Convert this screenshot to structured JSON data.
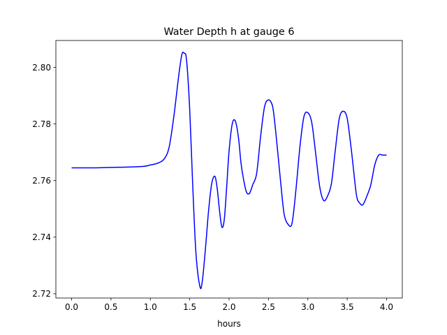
{
  "chart_data": {
    "type": "line",
    "title": "Water Depth h at gauge 6",
    "xlabel": "hours",
    "ylabel": "",
    "xlim": [
      -0.2,
      4.2
    ],
    "ylim": [
      2.7185,
      2.8095
    ],
    "xticks": [
      0.0,
      0.5,
      1.0,
      1.5,
      2.0,
      2.5,
      3.0,
      3.5,
      4.0
    ],
    "xtick_labels": [
      "0.0",
      "0.5",
      "1.0",
      "1.5",
      "2.0",
      "2.5",
      "3.0",
      "3.5",
      "4.0"
    ],
    "yticks": [
      2.72,
      2.74,
      2.76,
      2.78,
      2.8
    ],
    "ytick_labels": [
      "2.72",
      "2.74",
      "2.76",
      "2.78",
      "2.80"
    ],
    "grid": false,
    "legend": "none",
    "series": [
      {
        "color": "#0000ff",
        "x": [
          0.0,
          0.3,
          0.6,
          0.9,
          1.0,
          1.1,
          1.18,
          1.24,
          1.3,
          1.36,
          1.4,
          1.43,
          1.46,
          1.5,
          1.54,
          1.58,
          1.63,
          1.66,
          1.7,
          1.74,
          1.78,
          1.82,
          1.85,
          1.88,
          1.91,
          1.94,
          1.97,
          2.0,
          2.04,
          2.08,
          2.12,
          2.15,
          2.18,
          2.22,
          2.26,
          2.3,
          2.35,
          2.4,
          2.45,
          2.5,
          2.55,
          2.58,
          2.62,
          2.66,
          2.7,
          2.75,
          2.8,
          2.85,
          2.9,
          2.95,
          3.0,
          3.05,
          3.1,
          3.15,
          3.2,
          3.25,
          3.3,
          3.35,
          3.4,
          3.45,
          3.5,
          3.55,
          3.58,
          3.62,
          3.66,
          3.7,
          3.75,
          3.8,
          3.85,
          3.9,
          3.95,
          4.0
        ],
        "values": [
          2.7645,
          2.7645,
          2.7647,
          2.765,
          2.7655,
          2.7662,
          2.7678,
          2.772,
          2.783,
          2.797,
          2.8045,
          2.805,
          2.8025,
          2.785,
          2.757,
          2.734,
          2.7225,
          2.7245,
          2.736,
          2.7495,
          2.759,
          2.7615,
          2.757,
          2.749,
          2.7435,
          2.7465,
          2.758,
          2.7705,
          2.78,
          2.781,
          2.775,
          2.7665,
          2.761,
          2.756,
          2.7555,
          2.7585,
          2.7625,
          2.7755,
          2.786,
          2.7885,
          2.7865,
          2.7805,
          2.7695,
          2.758,
          2.748,
          2.7445,
          2.745,
          2.757,
          2.772,
          2.7825,
          2.784,
          2.7805,
          2.7695,
          2.758,
          2.753,
          2.7545,
          2.759,
          2.771,
          2.782,
          2.7845,
          2.782,
          2.7715,
          2.764,
          2.7545,
          2.752,
          2.7515,
          2.7545,
          2.7585,
          2.7655,
          2.769,
          2.769,
          2.769
        ]
      }
    ]
  }
}
